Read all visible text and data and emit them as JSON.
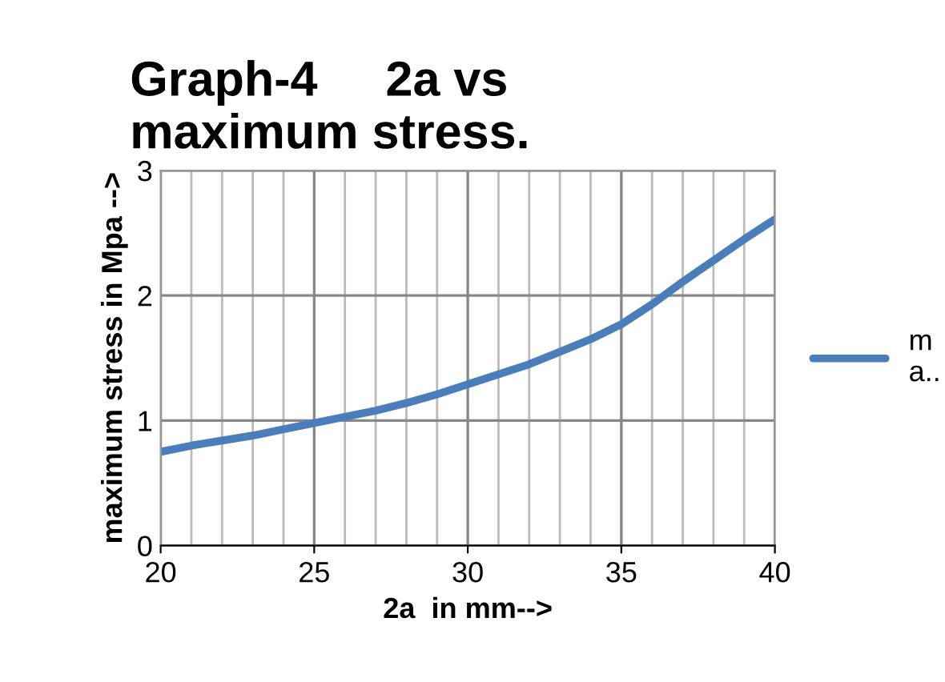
{
  "chart_data": {
    "type": "line",
    "title": "Graph-4     2a vs\nmaximum stress.",
    "xlabel": "2a  in mm-->",
    "ylabel": "maximum stress in Mpa -->",
    "x": [
      20,
      21,
      22,
      23,
      24,
      25,
      26,
      27,
      28,
      29,
      30,
      31,
      32,
      33,
      34,
      35,
      36,
      37,
      38,
      39,
      40
    ],
    "series": [
      {
        "name": "m\na..",
        "color": "#4a7ebb",
        "values": [
          0.75,
          0.8,
          0.84,
          0.88,
          0.93,
          0.98,
          1.03,
          1.08,
          1.14,
          1.21,
          1.29,
          1.37,
          1.45,
          1.55,
          1.65,
          1.77,
          1.93,
          2.11,
          2.28,
          2.45,
          2.61
        ]
      }
    ],
    "xlim": [
      20,
      40
    ],
    "ylim": [
      0,
      3
    ],
    "xticks": [
      20,
      {
        "value": 21,
        "label": null
      },
      {
        "value": 22,
        "label": null
      },
      {
        "value": 23,
        "label": null
      },
      {
        "value": 24,
        "label": null
      },
      25,
      {
        "value": 26,
        "label": null
      },
      {
        "value": 27,
        "label": null
      },
      {
        "value": 28,
        "label": null
      },
      {
        "value": 29,
        "label": null
      },
      30,
      {
        "value": 31,
        "label": null
      },
      {
        "value": 32,
        "label": null
      },
      {
        "value": 33,
        "label": null
      },
      {
        "value": 34,
        "label": null
      },
      35,
      {
        "value": 36,
        "label": null
      },
      {
        "value": 37,
        "label": null
      },
      {
        "value": 38,
        "label": null
      },
      {
        "value": 39,
        "label": null
      },
      40
    ],
    "yticks": [
      0,
      1,
      2,
      3
    ],
    "grid": true,
    "legend": "right",
    "marker": "none",
    "line_style": "solid"
  }
}
